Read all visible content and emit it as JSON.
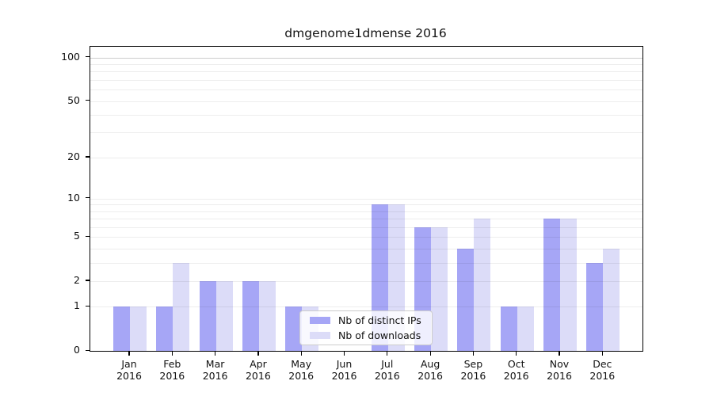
{
  "title": "dmgenome1dmense 2016",
  "legend": {
    "items": [
      {
        "label": "Nb of distinct IPs",
        "color": "#a6a6f6"
      },
      {
        "label": "Nb of downloads",
        "color": "#dcdcf8"
      }
    ]
  },
  "axis": {
    "y_ticks": [
      0,
      1,
      2,
      5,
      10,
      20,
      50,
      100
    ],
    "grid_values": [
      1,
      2,
      3,
      4,
      5,
      6,
      7,
      8,
      9,
      10,
      20,
      30,
      40,
      50,
      60,
      70,
      80,
      90,
      100
    ],
    "months": [
      "Jan",
      "Feb",
      "Mar",
      "Apr",
      "May",
      "Jun",
      "Jul",
      "Aug",
      "Sep",
      "Oct",
      "Nov",
      "Dec"
    ],
    "year": "2016"
  },
  "chart_data": {
    "type": "bar",
    "title": "dmgenome1dmense 2016",
    "categories": [
      "Jan 2016",
      "Feb 2016",
      "Mar 2016",
      "Apr 2016",
      "May 2016",
      "Jun 2016",
      "Jul 2016",
      "Aug 2016",
      "Sep 2016",
      "Oct 2016",
      "Nov 2016",
      "Dec 2016"
    ],
    "series": [
      {
        "name": "Nb of distinct IPs",
        "color": "#a6a6f6",
        "values": [
          1,
          1,
          2,
          2,
          1,
          0,
          9,
          6,
          4,
          1,
          7,
          3
        ]
      },
      {
        "name": "Nb of downloads",
        "color": "#dcdcf8",
        "values": [
          1,
          3,
          2,
          2,
          1,
          0,
          9,
          6,
          7,
          1,
          7,
          4
        ]
      }
    ],
    "y_scale": "log1p",
    "ylim": [
      0,
      119
    ],
    "yticks": [
      0,
      1,
      2,
      5,
      10,
      20,
      50,
      100
    ],
    "grid": "on",
    "legend_position": "inside lower-center"
  }
}
